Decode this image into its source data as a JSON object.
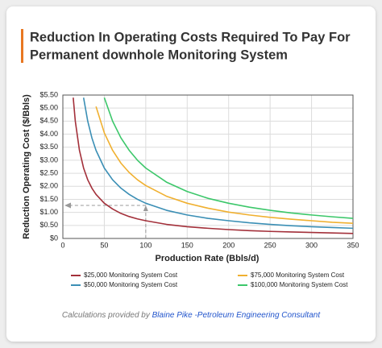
{
  "chart_data": {
    "type": "line",
    "title": [
      "Reduction In Operating Costs Required To Pay For",
      "Permanent downhole Monitoring System"
    ],
    "xlabel": "Production Rate (Bbls/d)",
    "ylabel": "Reduction Operating Cost ($/Bbls)",
    "x": [
      10,
      12.5,
      15,
      20,
      25,
      30,
      35,
      40,
      50,
      60,
      70,
      80,
      90,
      100,
      125,
      150,
      175,
      200,
      225,
      250,
      275,
      300,
      325,
      350
    ],
    "series": [
      {
        "name": "$25,000 Monitoring System Cost",
        "color": "#a3303a",
        "values": [
          null,
          5.4,
          4.5,
          3.38,
          2.7,
          2.25,
          1.93,
          1.69,
          1.35,
          1.13,
          0.96,
          0.84,
          0.75,
          0.68,
          0.54,
          0.45,
          0.39,
          0.34,
          0.3,
          0.27,
          0.25,
          0.23,
          0.21,
          0.19
        ]
      },
      {
        "name": "$50,000 Monitoring System Cost",
        "color": "#3b8fb5",
        "values": [
          null,
          null,
          null,
          null,
          5.4,
          4.5,
          3.86,
          3.38,
          2.7,
          2.25,
          1.93,
          1.69,
          1.5,
          1.35,
          1.08,
          0.9,
          0.77,
          0.68,
          0.6,
          0.54,
          0.49,
          0.45,
          0.42,
          0.39
        ]
      },
      {
        "name": "$75,000 Monitoring System Cost",
        "color": "#f0b030",
        "values": [
          null,
          null,
          null,
          null,
          null,
          null,
          null,
          5.06,
          4.05,
          3.38,
          2.89,
          2.53,
          2.25,
          2.03,
          1.62,
          1.35,
          1.16,
          1.01,
          0.9,
          0.81,
          0.74,
          0.68,
          0.62,
          0.58
        ]
      },
      {
        "name": "$100,000 Monitoring System Cost",
        "color": "#3cc76a",
        "values": [
          null,
          null,
          null,
          null,
          null,
          null,
          null,
          null,
          5.4,
          4.5,
          3.86,
          3.38,
          3.0,
          2.7,
          2.16,
          1.8,
          1.54,
          1.35,
          1.2,
          1.08,
          0.98,
          0.9,
          0.83,
          0.77
        ]
      }
    ],
    "xlim": [
      0,
      350
    ],
    "xticks": [
      0,
      50,
      100,
      150,
      200,
      250,
      300,
      350
    ],
    "ylim": [
      0,
      5.5
    ],
    "yticks": [
      {
        "value": 0,
        "label": "$0"
      },
      {
        "value": 0.5,
        "label": "$0.50"
      },
      {
        "value": 1,
        "label": "$1.00"
      },
      {
        "value": 1.5,
        "label": "$1.50"
      },
      {
        "value": 2,
        "label": "$2.00"
      },
      {
        "value": 2.5,
        "label": "$2.50"
      },
      {
        "value": 3,
        "label": "$3.00"
      },
      {
        "value": 3.5,
        "label": "$3.50"
      },
      {
        "value": 4,
        "label": "$4.00"
      },
      {
        "value": 4.5,
        "label": "$4.50"
      },
      {
        "value": 5,
        "label": "$5.00"
      },
      {
        "value": 5.5,
        "label": "$5.50"
      }
    ],
    "grid": true
  },
  "footer": {
    "text": "Calculations provided by",
    "link": "Blaine Pike -Petroleum Engineering Consultant"
  }
}
